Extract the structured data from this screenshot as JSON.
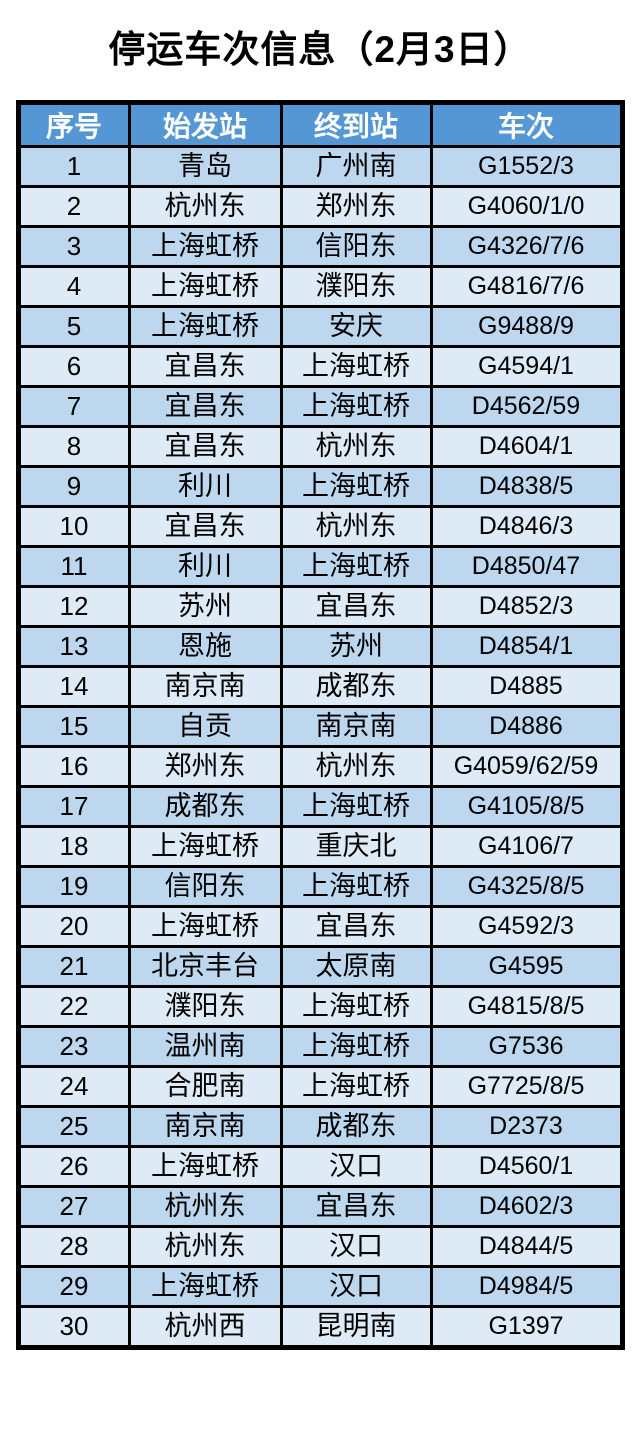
{
  "title": "停运车次信息（2月3日）",
  "colors": {
    "header_bg": "#5597d5",
    "header_text": "#ffffff",
    "row_odd_bg": "#bdd7ee",
    "row_even_bg": "#deebf7",
    "border": "#000000",
    "cell_text": "#000000",
    "page_bg": "#ffffff"
  },
  "table": {
    "headers": [
      "序号",
      "始发站",
      "终到站",
      "车次"
    ],
    "rows": [
      [
        "1",
        "青岛",
        "广州南",
        "G1552/3"
      ],
      [
        "2",
        "杭州东",
        "郑州东",
        "G4060/1/0"
      ],
      [
        "3",
        "上海虹桥",
        "信阳东",
        "G4326/7/6"
      ],
      [
        "4",
        "上海虹桥",
        "濮阳东",
        "G4816/7/6"
      ],
      [
        "5",
        "上海虹桥",
        "安庆",
        "G9488/9"
      ],
      [
        "6",
        "宜昌东",
        "上海虹桥",
        "G4594/1"
      ],
      [
        "7",
        "宜昌东",
        "上海虹桥",
        "D4562/59"
      ],
      [
        "8",
        "宜昌东",
        "杭州东",
        "D4604/1"
      ],
      [
        "9",
        "利川",
        "上海虹桥",
        "D4838/5"
      ],
      [
        "10",
        "宜昌东",
        "杭州东",
        "D4846/3"
      ],
      [
        "11",
        "利川",
        "上海虹桥",
        "D4850/47"
      ],
      [
        "12",
        "苏州",
        "宜昌东",
        "D4852/3"
      ],
      [
        "13",
        "恩施",
        "苏州",
        "D4854/1"
      ],
      [
        "14",
        "南京南",
        "成都东",
        "D4885"
      ],
      [
        "15",
        "自贡",
        "南京南",
        "D4886"
      ],
      [
        "16",
        "郑州东",
        "杭州东",
        "G4059/62/59"
      ],
      [
        "17",
        "成都东",
        "上海虹桥",
        "G4105/8/5"
      ],
      [
        "18",
        "上海虹桥",
        "重庆北",
        "G4106/7"
      ],
      [
        "19",
        "信阳东",
        "上海虹桥",
        "G4325/8/5"
      ],
      [
        "20",
        "上海虹桥",
        "宜昌东",
        "G4592/3"
      ],
      [
        "21",
        "北京丰台",
        "太原南",
        "G4595"
      ],
      [
        "22",
        "濮阳东",
        "上海虹桥",
        "G4815/8/5"
      ],
      [
        "23",
        "温州南",
        "上海虹桥",
        "G7536"
      ],
      [
        "24",
        "合肥南",
        "上海虹桥",
        "G7725/8/5"
      ],
      [
        "25",
        "南京南",
        "成都东",
        "D2373"
      ],
      [
        "26",
        "上海虹桥",
        "汉口",
        "D4560/1"
      ],
      [
        "27",
        "杭州东",
        "宜昌东",
        "D4602/3"
      ],
      [
        "28",
        "杭州东",
        "汉口",
        "D4844/5"
      ],
      [
        "29",
        "上海虹桥",
        "汉口",
        "D4984/5"
      ],
      [
        "30",
        "杭州西",
        "昆明南",
        "G1397"
      ]
    ]
  }
}
